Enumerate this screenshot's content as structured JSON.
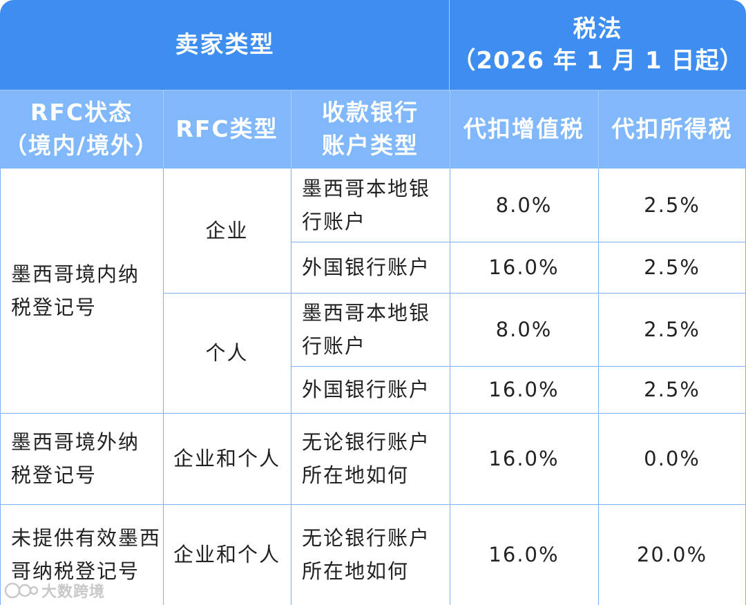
{
  "header": {
    "seller_type": "卖家类型",
    "tax_title": "税法",
    "tax_date": "（2026 年 1 月 1 日起）"
  },
  "columns": {
    "rfc_status": [
      "RFC状态",
      "（境内/境外）"
    ],
    "rfc_type": "RFC类型",
    "bank_type": [
      "收款银行",
      "账户类型"
    ],
    "vat": "代扣增值税",
    "income_tax": "代扣所得税"
  },
  "groups": {
    "domestic": [
      "墨西哥境内纳",
      "税登记号"
    ],
    "foreign": [
      "墨西哥境外纳",
      "税登记号"
    ],
    "none": [
      "未提供有效墨西",
      "哥纳税登记号"
    ]
  },
  "types": {
    "company": "企业",
    "individual": "个人",
    "both_1": "企业和个人",
    "both_2": "企业和个人"
  },
  "rows": [
    {
      "bank": [
        "墨西哥本地银",
        "行账户"
      ],
      "vat": "8.0%",
      "income": "2.5%"
    },
    {
      "bank": [
        "外国银行账户"
      ],
      "vat": "16.0%",
      "income": "2.5%"
    },
    {
      "bank": [
        "墨西哥本地银",
        "行账户"
      ],
      "vat": "8.0%",
      "income": "2.5%"
    },
    {
      "bank": [
        "外国银行账户"
      ],
      "vat": "16.0%",
      "income": "2.5%"
    },
    {
      "bank": [
        "无论银行账户",
        "所在地如何"
      ],
      "vat": "16.0%",
      "income": "0.0%"
    },
    {
      "bank": [
        "无论银行账户",
        "所在地如何"
      ],
      "vat": "16.0%",
      "income": "20.0%"
    }
  ],
  "watermark": "大数跨境",
  "colors": {
    "header_dark": "#3d8ef0",
    "header_light": "#80b8fb",
    "grid": "#7fb1f2"
  }
}
